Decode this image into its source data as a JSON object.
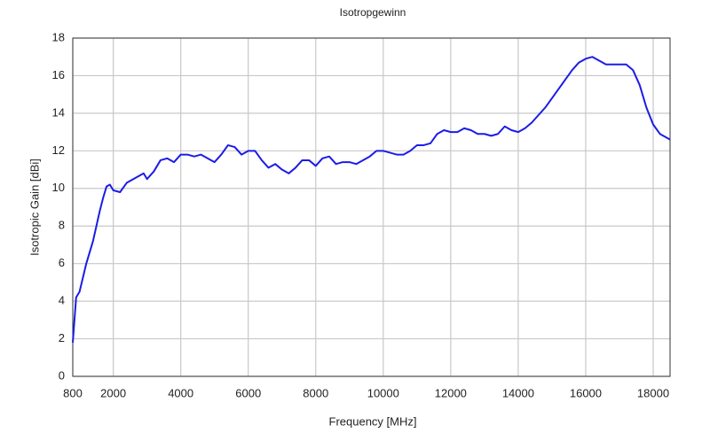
{
  "chart_data": {
    "type": "line",
    "title": "Isotropgewinn",
    "x_label": "Frequency [MHz]",
    "y_label": "Isotropic Gain [dBi]",
    "x": [
      800,
      900,
      1000,
      1200,
      1400,
      1500,
      1600,
      1700,
      1800,
      1900,
      2000,
      2200,
      2400,
      2600,
      2800,
      2900,
      3000,
      3200,
      3400,
      3600,
      3800,
      4000,
      4200,
      4400,
      4600,
      4800,
      5000,
      5200,
      5400,
      5600,
      5800,
      6000,
      6200,
      6400,
      6600,
      6800,
      7000,
      7200,
      7400,
      7600,
      7800,
      8000,
      8200,
      8400,
      8600,
      8800,
      9000,
      9200,
      9400,
      9600,
      9800,
      10000,
      10200,
      10400,
      10600,
      10800,
      11000,
      11200,
      11400,
      11600,
      11800,
      12000,
      12200,
      12400,
      12600,
      12800,
      13000,
      13200,
      13400,
      13600,
      13800,
      14000,
      14200,
      14400,
      14600,
      14800,
      15000,
      15200,
      15400,
      15600,
      15800,
      16000,
      16200,
      16400,
      16600,
      16800,
      17000,
      17200,
      17400,
      17600,
      17800,
      18000,
      18200,
      18400,
      18500
    ],
    "values": [
      1.8,
      4.2,
      4.5,
      6.0,
      7.2,
      8.0,
      8.8,
      9.5,
      10.1,
      10.2,
      9.9,
      9.8,
      10.3,
      10.5,
      10.7,
      10.8,
      10.5,
      10.9,
      11.5,
      11.6,
      11.4,
      11.8,
      11.8,
      11.7,
      11.8,
      11.6,
      11.4,
      11.8,
      12.3,
      12.2,
      11.8,
      12.0,
      12.0,
      11.5,
      11.1,
      11.3,
      11.0,
      10.8,
      11.1,
      11.5,
      11.5,
      11.2,
      11.6,
      11.7,
      11.3,
      11.4,
      11.4,
      11.3,
      11.5,
      11.7,
      12.0,
      12.0,
      11.9,
      11.8,
      11.8,
      12.0,
      12.3,
      12.3,
      12.4,
      12.9,
      13.1,
      13.0,
      13.0,
      13.2,
      13.1,
      12.9,
      12.9,
      12.8,
      12.9,
      13.3,
      13.1,
      13.0,
      13.2,
      13.5,
      13.9,
      14.3,
      14.8,
      15.3,
      15.8,
      16.3,
      16.7,
      16.9,
      17.0,
      16.8,
      16.6,
      16.6,
      16.6,
      16.6,
      16.3,
      15.5,
      14.3,
      13.4,
      12.9,
      12.7,
      12.6
    ],
    "color": "#1c1ce6",
    "xlim": [
      800,
      18500
    ],
    "ylim": [
      0,
      18
    ],
    "xticks": [
      800,
      2000,
      4000,
      6000,
      8000,
      10000,
      12000,
      14000,
      16000,
      18000
    ],
    "yticks": [
      0,
      2,
      4,
      6,
      8,
      10,
      12,
      14,
      16,
      18
    ],
    "grid": true
  }
}
